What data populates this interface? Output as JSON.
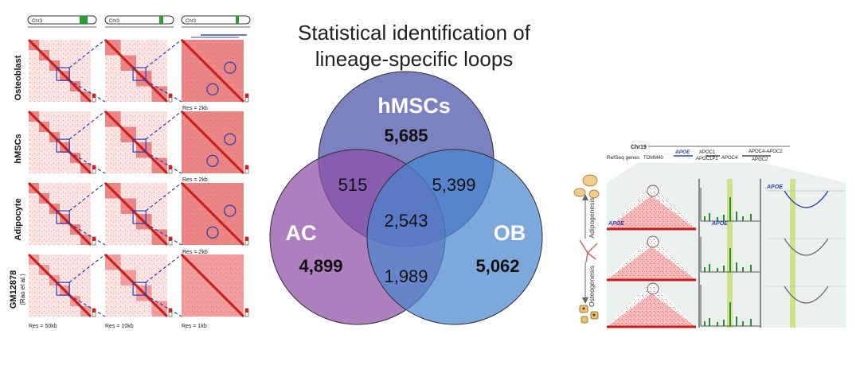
{
  "title": {
    "line1": "Statistical identification of",
    "line2": "lineage-specific loops"
  },
  "venn": {
    "hmscs": {
      "label": "hMSCs",
      "unique": "5,685"
    },
    "ac": {
      "label": "AC",
      "unique": "4,899"
    },
    "ob": {
      "label": "OB",
      "unique": "5,062"
    },
    "hmscs_ac": "515",
    "hmscs_ob": "5,399",
    "ac_ob": "1,989",
    "all": "2,543",
    "colors": {
      "hmscs": "#4a51a8",
      "ac": "#8e4ea6",
      "ob": "#4a86cf"
    }
  },
  "heatmaps": {
    "chrom_labels": [
      "Chr3",
      "Chr3",
      "Chr3"
    ],
    "row_labels": [
      "Osteoblast",
      "hMSCs",
      "Adipocyte",
      "GM12878"
    ],
    "row4_sublabel": "(Rao et al.)",
    "res_labels": [
      "Res = 50kb",
      "Res = 10kb",
      "Res = 1kb"
    ],
    "col3_res": [
      "Res = 2kb",
      "Res = 2kb",
      "Res = 2kb"
    ]
  },
  "apoe_panel": {
    "chrom": "Chr19",
    "refseq_label": "RefSeq genes",
    "genes": [
      "APOE",
      "TOMM40",
      "APOC1",
      "APOC1P1",
      "APOC4",
      "APOC4-APOC2",
      "APOC2"
    ],
    "track_label": "APOE",
    "axis_top": "Adipogenesis",
    "axis_bottom": "Osteogenesis"
  }
}
